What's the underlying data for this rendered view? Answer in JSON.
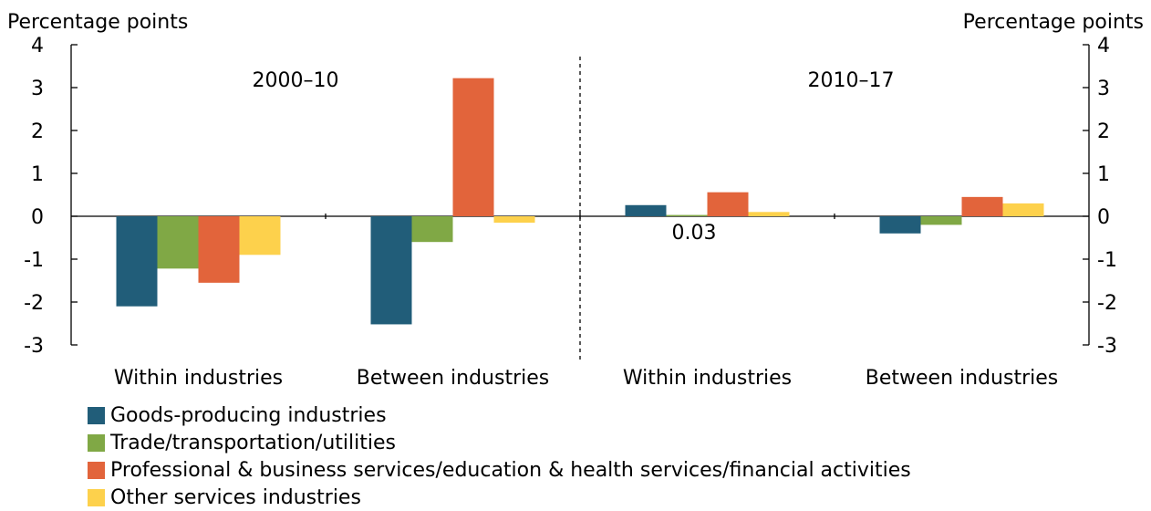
{
  "chart_data": {
    "type": "bar",
    "title": "",
    "ylabel_left": "Percentage points",
    "ylabel_right": "Percentage points",
    "ylim": [
      -3,
      4
    ],
    "yticks": [
      "4",
      "3",
      "2",
      "1",
      "0",
      "-1",
      "-2",
      "-3"
    ],
    "ytick_values": [
      4,
      3,
      2,
      1,
      0,
      -1,
      -2,
      -3
    ],
    "periods": [
      "2000–10",
      "2010–17"
    ],
    "categories": [
      "Within industries",
      "Between industries",
      "Within industries",
      "Between industries"
    ],
    "series": [
      {
        "name": "Goods-producing industries",
        "color": "#215d79",
        "values": [
          -2.1,
          -2.52,
          0.26,
          -0.4
        ]
      },
      {
        "name": "Trade/transportation/utilities",
        "color": "#80a845",
        "values": [
          -1.22,
          -0.6,
          0.03,
          -0.2
        ]
      },
      {
        "name": "Professional & business services/education & health services/financial activities",
        "color": "#e2643b",
        "values": [
          -1.55,
          3.22,
          0.56,
          0.45
        ]
      },
      {
        "name": "Other services industries",
        "color": "#fdd14c",
        "values": [
          -0.9,
          -0.15,
          0.1,
          0.3
        ]
      }
    ],
    "annotations": [
      {
        "text": "0.03",
        "category_index": 2,
        "series_index": 1
      }
    ],
    "grid": false,
    "legend_position": "bottom-left"
  }
}
